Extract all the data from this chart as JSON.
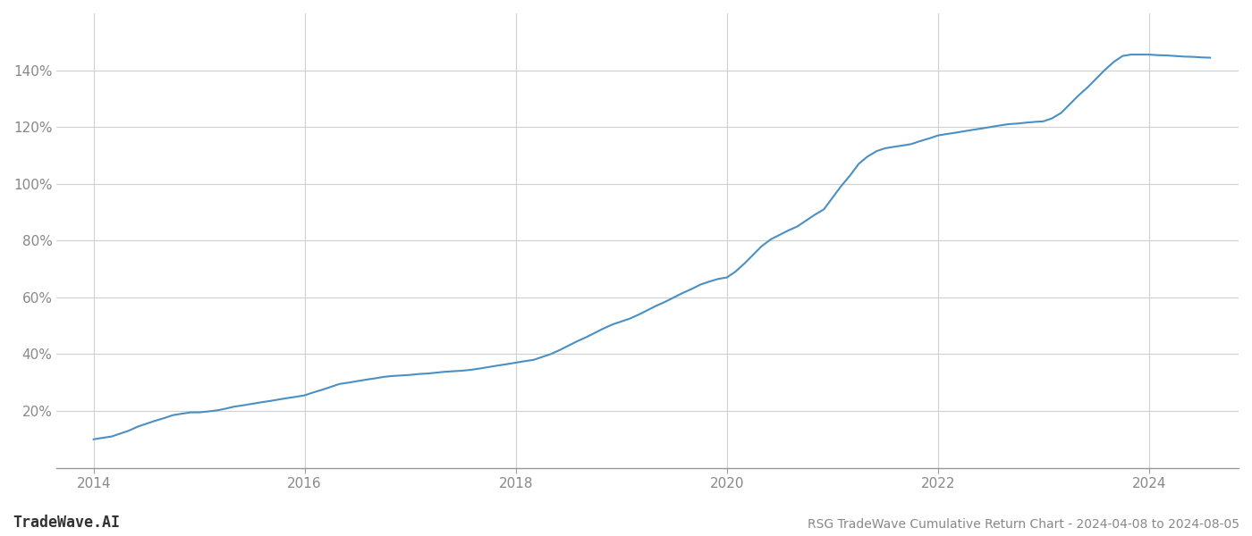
{
  "title": "RSG TradeWave Cumulative Return Chart - 2024-04-08 to 2024-08-05",
  "watermark": "TradeWave.AI",
  "line_color": "#4a90c4",
  "line_width": 1.5,
  "background_color": "#ffffff",
  "grid_color": "#d0d0d0",
  "x_years": [
    2014.0,
    2014.08,
    2014.17,
    2014.25,
    2014.33,
    2014.42,
    2014.5,
    2014.58,
    2014.67,
    2014.75,
    2014.83,
    2014.92,
    2015.0,
    2015.08,
    2015.17,
    2015.25,
    2015.33,
    2015.42,
    2015.5,
    2015.58,
    2015.67,
    2015.75,
    2015.83,
    2015.92,
    2016.0,
    2016.08,
    2016.17,
    2016.25,
    2016.33,
    2016.42,
    2016.5,
    2016.58,
    2016.67,
    2016.75,
    2016.83,
    2016.92,
    2017.0,
    2017.08,
    2017.17,
    2017.25,
    2017.33,
    2017.42,
    2017.5,
    2017.58,
    2017.67,
    2017.75,
    2017.83,
    2017.92,
    2018.0,
    2018.08,
    2018.17,
    2018.25,
    2018.33,
    2018.42,
    2018.5,
    2018.58,
    2018.67,
    2018.75,
    2018.83,
    2018.92,
    2019.0,
    2019.08,
    2019.17,
    2019.25,
    2019.33,
    2019.42,
    2019.5,
    2019.58,
    2019.67,
    2019.75,
    2019.83,
    2019.92,
    2020.0,
    2020.08,
    2020.17,
    2020.25,
    2020.33,
    2020.42,
    2020.5,
    2020.58,
    2020.67,
    2020.75,
    2020.83,
    2020.92,
    2021.0,
    2021.08,
    2021.17,
    2021.25,
    2021.33,
    2021.42,
    2021.5,
    2021.58,
    2021.67,
    2021.75,
    2021.83,
    2021.92,
    2022.0,
    2022.08,
    2022.17,
    2022.25,
    2022.33,
    2022.42,
    2022.5,
    2022.58,
    2022.67,
    2022.75,
    2022.83,
    2022.92,
    2023.0,
    2023.08,
    2023.17,
    2023.25,
    2023.33,
    2023.42,
    2023.5,
    2023.58,
    2023.67,
    2023.75,
    2023.83,
    2023.92,
    2024.0,
    2024.08,
    2024.17,
    2024.25,
    2024.33,
    2024.42,
    2024.5,
    2024.58
  ],
  "y_values": [
    10.0,
    10.5,
    11.0,
    12.0,
    13.0,
    14.5,
    15.5,
    16.5,
    17.5,
    18.5,
    19.0,
    19.5,
    19.5,
    19.8,
    20.2,
    20.8,
    21.5,
    22.0,
    22.5,
    23.0,
    23.5,
    24.0,
    24.5,
    25.0,
    25.5,
    26.5,
    27.5,
    28.5,
    29.5,
    30.0,
    30.5,
    31.0,
    31.5,
    32.0,
    32.3,
    32.5,
    32.7,
    33.0,
    33.2,
    33.5,
    33.8,
    34.0,
    34.2,
    34.5,
    35.0,
    35.5,
    36.0,
    36.5,
    37.0,
    37.5,
    38.0,
    39.0,
    40.0,
    41.5,
    43.0,
    44.5,
    46.0,
    47.5,
    49.0,
    50.5,
    51.5,
    52.5,
    54.0,
    55.5,
    57.0,
    58.5,
    60.0,
    61.5,
    63.0,
    64.5,
    65.5,
    66.5,
    67.0,
    69.0,
    72.0,
    75.0,
    78.0,
    80.5,
    82.0,
    83.5,
    85.0,
    87.0,
    89.0,
    91.0,
    95.0,
    99.0,
    103.0,
    107.0,
    109.5,
    111.5,
    112.5,
    113.0,
    113.5,
    114.0,
    115.0,
    116.0,
    117.0,
    117.5,
    118.0,
    118.5,
    119.0,
    119.5,
    120.0,
    120.5,
    121.0,
    121.2,
    121.5,
    121.8,
    122.0,
    123.0,
    125.0,
    128.0,
    131.0,
    134.0,
    137.0,
    140.0,
    143.0,
    145.0,
    145.5,
    145.5,
    145.5,
    145.3,
    145.2,
    145.0,
    144.8,
    144.7,
    144.5,
    144.4
  ],
  "xtick_labels": [
    "2014",
    "2016",
    "2018",
    "2020",
    "2022",
    "2024"
  ],
  "xtick_positions": [
    2014,
    2016,
    2018,
    2020,
    2022,
    2024
  ],
  "ytick_positions": [
    20,
    40,
    60,
    80,
    100,
    120,
    140
  ],
  "ytick_labels": [
    "20%",
    "40%",
    "60%",
    "80%",
    "100%",
    "120%",
    "140%"
  ],
  "ylim": [
    0,
    160
  ],
  "xlim": [
    2013.65,
    2024.85
  ],
  "title_fontsize": 10,
  "tick_fontsize": 11,
  "watermark_fontsize": 12
}
